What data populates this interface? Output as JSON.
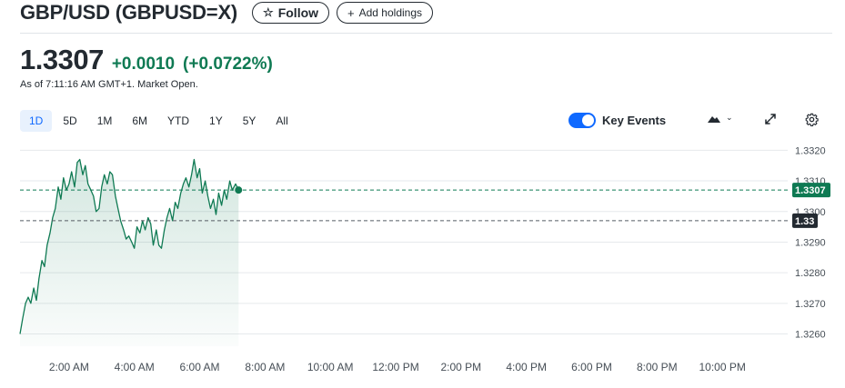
{
  "header": {
    "title": "GBP/USD (GBPUSD=X)",
    "follow_label": "Follow",
    "add_holdings_label": "Add holdings"
  },
  "quote": {
    "price": "1.3307",
    "change": "+0.0010",
    "change_percent": "(+0.0722%)",
    "as_of": "As of 7:11:16 AM GMT+1. Market Open."
  },
  "ranges": [
    {
      "label": "1D",
      "active": true
    },
    {
      "label": "5D",
      "active": false
    },
    {
      "label": "1M",
      "active": false
    },
    {
      "label": "6M",
      "active": false
    },
    {
      "label": "YTD",
      "active": false
    },
    {
      "label": "1Y",
      "active": false
    },
    {
      "label": "5Y",
      "active": false
    },
    {
      "label": "All",
      "active": false
    }
  ],
  "controls": {
    "key_events_label": "Key Events",
    "key_events_on": true,
    "chart_type_icon": "mountain-icon",
    "expand_icon": "expand-icon",
    "settings_icon": "gear-icon"
  },
  "colors": {
    "up": "#0f7a53",
    "accent": "#0f69ff",
    "prev_close_tag": "#232a31"
  },
  "chart_data": {
    "type": "area",
    "title": "",
    "xlabel": "",
    "ylabel": "",
    "x_ticks": [
      "2:00 AM",
      "4:00 AM",
      "6:00 AM",
      "8:00 AM",
      "10:00 AM",
      "12:00 PM",
      "2:00 PM",
      "4:00 PM",
      "6:00 PM",
      "8:00 PM",
      "10:00 PM"
    ],
    "y_ticks": [
      "1.3320",
      "1.3310",
      "1.3300",
      "1.3290",
      "1.3280",
      "1.3270",
      "1.3260"
    ],
    "ylim": [
      1.3256,
      1.3321
    ],
    "x_range_hours": [
      0.5,
      24.0
    ],
    "current_price": 1.3307,
    "current_price_label": "1.3307",
    "previous_close": 1.3297,
    "previous_close_label": "1.33",
    "grid": true,
    "series": [
      {
        "time_hours": [
          0.5,
          0.58,
          0.67,
          0.75,
          0.83,
          0.92,
          1.0,
          1.08,
          1.17,
          1.25,
          1.33,
          1.42,
          1.5,
          1.58,
          1.67,
          1.75,
          1.83,
          1.92,
          2.0,
          2.08,
          2.17,
          2.25,
          2.33,
          2.42,
          2.5,
          2.58,
          2.67,
          2.75,
          2.83,
          2.92,
          3.0,
          3.08,
          3.17,
          3.25,
          3.33,
          3.42,
          3.5,
          3.58,
          3.67,
          3.75,
          3.83,
          3.92,
          4.0,
          4.08,
          4.17,
          4.25,
          4.33,
          4.42,
          4.5,
          4.58,
          4.67,
          4.75,
          4.83,
          4.92,
          5.0,
          5.08,
          5.17,
          5.25,
          5.33,
          5.42,
          5.5,
          5.58,
          5.67,
          5.75,
          5.83,
          5.92,
          6.0,
          6.08,
          6.17,
          6.25,
          6.33,
          6.42,
          6.5,
          6.58,
          6.67,
          6.75,
          6.83,
          6.92,
          7.0,
          7.1,
          7.19
        ],
        "values": [
          1.326,
          1.3265,
          1.327,
          1.3272,
          1.327,
          1.3275,
          1.3271,
          1.3278,
          1.3284,
          1.3282,
          1.3289,
          1.3293,
          1.3298,
          1.3301,
          1.3308,
          1.3304,
          1.3311,
          1.3307,
          1.3309,
          1.3313,
          1.3308,
          1.3316,
          1.3317,
          1.3312,
          1.3315,
          1.3309,
          1.3307,
          1.3305,
          1.33,
          1.3301,
          1.3308,
          1.3312,
          1.3309,
          1.3313,
          1.3312,
          1.3305,
          1.3301,
          1.3297,
          1.3294,
          1.3291,
          1.3292,
          1.329,
          1.3288,
          1.3295,
          1.3293,
          1.3297,
          1.3294,
          1.3298,
          1.3296,
          1.3289,
          1.3294,
          1.3289,
          1.3288,
          1.3294,
          1.3298,
          1.3301,
          1.3297,
          1.3303,
          1.3301,
          1.3306,
          1.3309,
          1.3311,
          1.3308,
          1.3312,
          1.3317,
          1.3311,
          1.3314,
          1.3306,
          1.331,
          1.3305,
          1.3301,
          1.3304,
          1.3299,
          1.3306,
          1.3302,
          1.3307,
          1.3304,
          1.331,
          1.3307,
          1.3309,
          1.3307
        ]
      }
    ]
  }
}
